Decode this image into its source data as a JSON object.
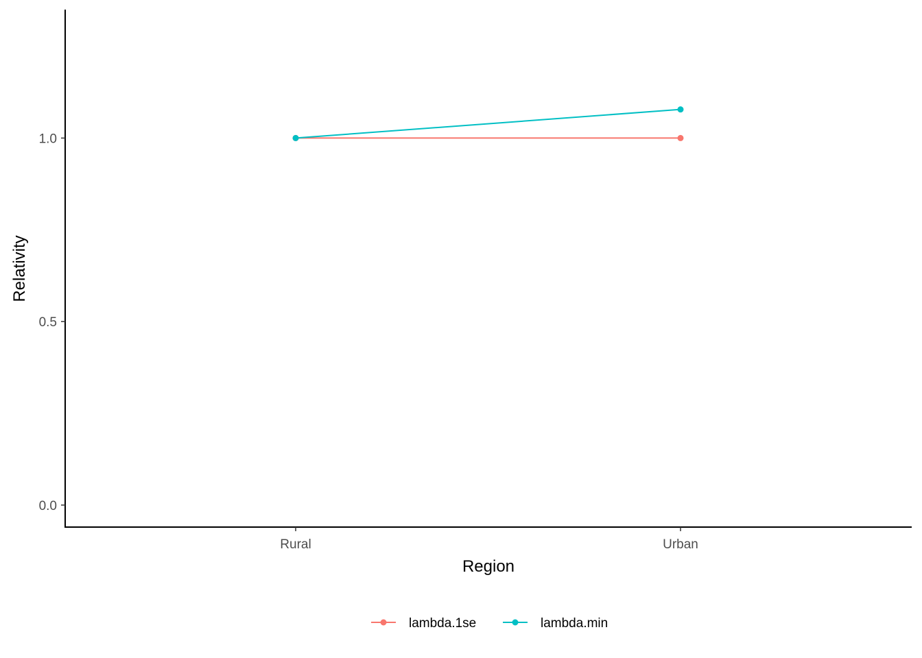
{
  "chart_data": {
    "type": "line",
    "xlabel": "Region",
    "ylabel": "Relativity",
    "categories": [
      "Rural",
      "Urban"
    ],
    "ylim": [
      -0.06,
      1.35
    ],
    "yticks": [
      0.0,
      0.5,
      1.0
    ],
    "ytick_labels": [
      "0.0",
      "0.5",
      "1.0"
    ],
    "grid": false,
    "legend_position": "bottom",
    "series": [
      {
        "name": "lambda.1se",
        "color": "#F8766D",
        "values": [
          1.0,
          1.0
        ]
      },
      {
        "name": "lambda.min",
        "color": "#00BFC4",
        "values": [
          1.0,
          1.078
        ]
      }
    ]
  }
}
